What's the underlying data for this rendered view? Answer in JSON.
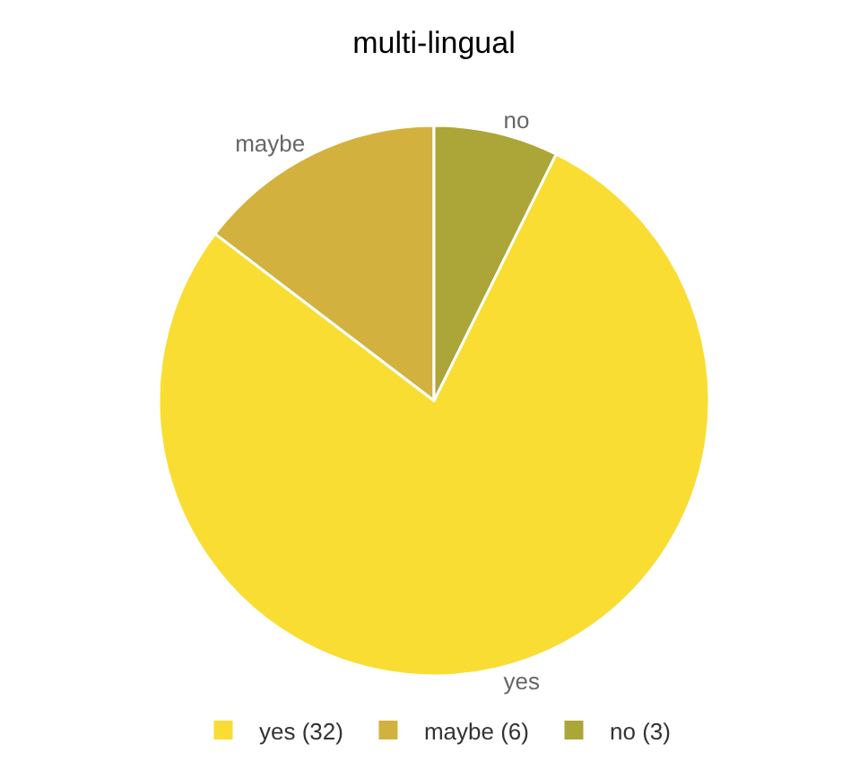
{
  "chart_data": {
    "type": "pie",
    "title": "multi-lingual",
    "categories": [
      "yes (32)",
      "maybe (6)",
      "no (3)"
    ],
    "values": [
      32,
      6,
      3
    ],
    "colors": [
      "#f9dd33",
      "#d3b13f",
      "#aca538"
    ],
    "annotations": [
      "yes",
      "maybe",
      "no"
    ],
    "legend": "bottom"
  }
}
